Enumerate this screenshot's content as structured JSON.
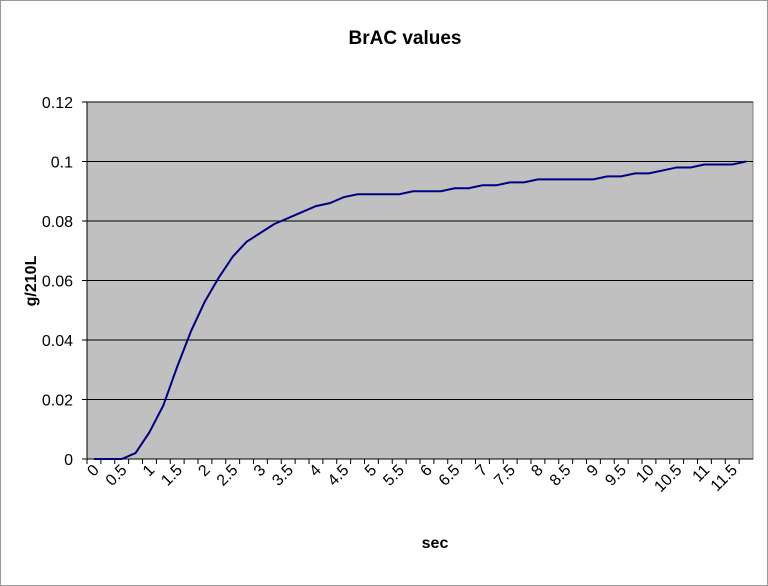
{
  "chart_data": {
    "type": "line",
    "title": "BrAC values",
    "x_label": "sec",
    "y_label": "g/210L",
    "categories": [
      "0",
      null,
      "0.5",
      null,
      "1",
      null,
      "1.5",
      null,
      "2",
      null,
      "2.5",
      null,
      "3",
      null,
      "3.5",
      null,
      "4",
      null,
      "4.5",
      null,
      "5",
      null,
      "5.5",
      null,
      "6",
      null,
      "6.5",
      null,
      "7",
      null,
      "7.5",
      null,
      "8",
      null,
      "8.5",
      null,
      "9",
      null,
      "9.5",
      null,
      "10",
      null,
      "10.5",
      null,
      "11",
      null,
      "11.5",
      null
    ],
    "series": [
      {
        "name": "BrAC",
        "color": "#000080",
        "values": [
          0,
          0,
          0,
          0.002,
          0.009,
          0.018,
          0.031,
          0.043,
          0.053,
          0.061,
          0.068,
          0.073,
          0.076,
          0.079,
          0.081,
          0.083,
          0.085,
          0.086,
          0.088,
          0.089,
          0.089,
          0.089,
          0.089,
          0.09,
          0.09,
          0.09,
          0.091,
          0.091,
          0.092,
          0.092,
          0.093,
          0.093,
          0.094,
          0.094,
          0.094,
          0.094,
          0.094,
          0.095,
          0.095,
          0.096,
          0.096,
          0.097,
          0.098,
          0.098,
          0.099,
          0.099,
          0.099,
          0.1
        ]
      }
    ],
    "ylim": [
      0,
      0.12
    ],
    "yticks": [
      0,
      0.02,
      0.04,
      0.06,
      0.08,
      0.1,
      0.12
    ],
    "grid": true,
    "plot_background": "#c0c0c0"
  }
}
